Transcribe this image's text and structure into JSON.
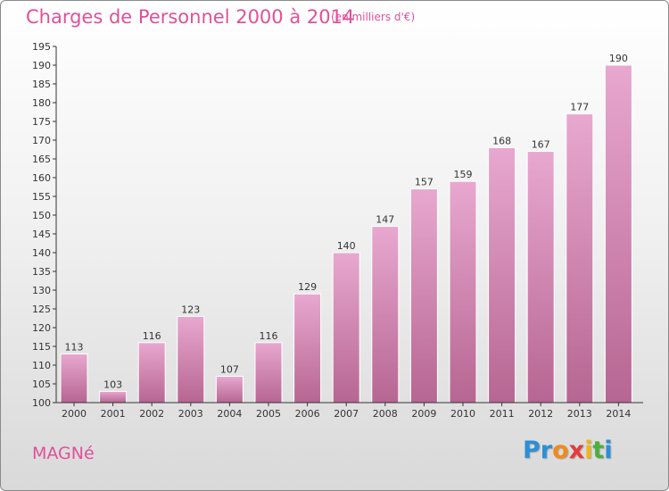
{
  "title": "Charges de Personnel 2000 à 2014",
  "subtitle": "(en milliers d'€)",
  "commune": "MAGNé",
  "logo": {
    "letters": [
      {
        "char": "P",
        "color": "#2b8fd6"
      },
      {
        "char": "r",
        "color": "#2b8fd6"
      },
      {
        "char": "o",
        "color": "#f08a1c"
      },
      {
        "char": "x",
        "color": "#e43c3c"
      },
      {
        "char": "i",
        "color": "#f0b41c"
      },
      {
        "char": "t",
        "color": "#4caf3a"
      },
      {
        "char": "i",
        "color": "#2b8fd6"
      }
    ]
  },
  "colors": {
    "accent": "#e0509a",
    "bar_top": "#e8a8cf",
    "bar_bottom": "#b66692",
    "axis": "#333333"
  },
  "chart_data": {
    "type": "bar",
    "title": "Charges de Personnel 2000 à 2014",
    "subtitle": "(en milliers d'€)",
    "categories": [
      "2000",
      "2001",
      "2002",
      "2003",
      "2004",
      "2005",
      "2006",
      "2007",
      "2008",
      "2009",
      "2010",
      "2011",
      "2012",
      "2013",
      "2014"
    ],
    "values": [
      113,
      103,
      116,
      123,
      107,
      116,
      129,
      140,
      147,
      157,
      159,
      168,
      167,
      177,
      190
    ],
    "data_labels": [
      "113",
      "103",
      "116",
      "123",
      "107",
      "116",
      "129",
      "140",
      "147",
      "157",
      "159",
      "168",
      "167",
      "177",
      "190"
    ],
    "ylim": [
      100,
      195
    ],
    "yticks": [
      100,
      105,
      110,
      115,
      120,
      125,
      130,
      135,
      140,
      145,
      150,
      155,
      160,
      165,
      170,
      175,
      180,
      185,
      190,
      195
    ],
    "ytick_labels": [
      "100",
      "105",
      "110",
      "115",
      "120",
      "125",
      "130",
      "135",
      "140",
      "145",
      "150",
      "155",
      "160",
      "165",
      "170",
      "175",
      "180",
      "185",
      "190",
      "195"
    ],
    "grid": false,
    "legend": "none"
  }
}
